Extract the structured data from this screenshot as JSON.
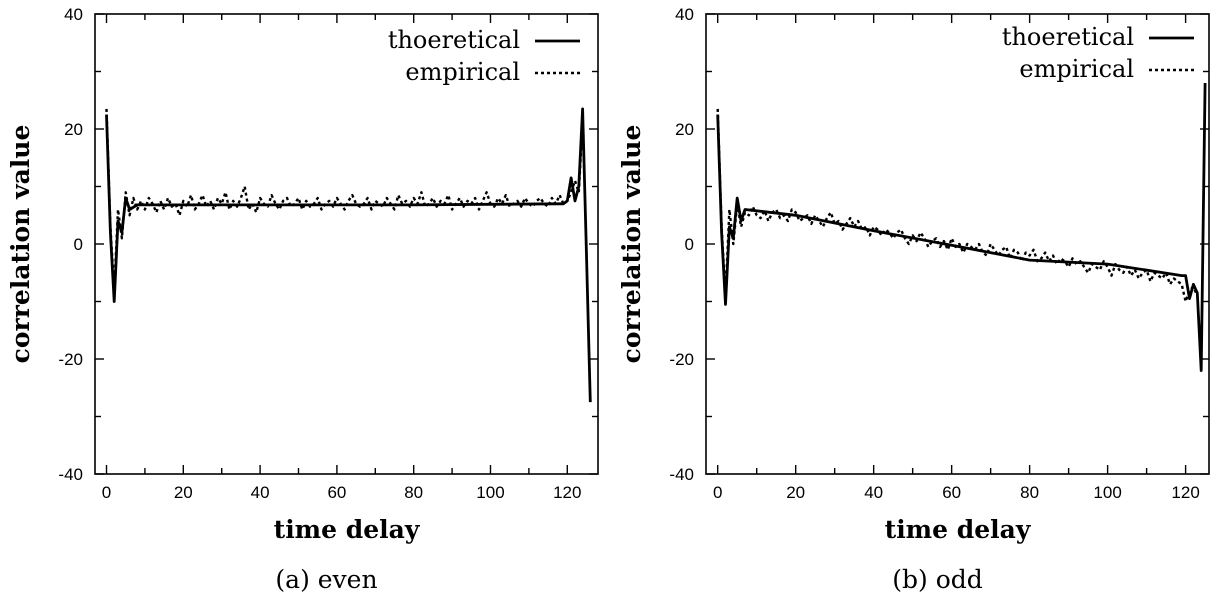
{
  "chart_data": [
    {
      "type": "line",
      "caption": "(a) even",
      "xlabel": "time delay",
      "ylabel": "correlation value",
      "xlim": [
        -3,
        128
      ],
      "ylim": [
        -40,
        40
      ],
      "x_ticks": [
        0,
        20,
        40,
        60,
        80,
        100,
        120
      ],
      "y_ticks": [
        -40,
        -20,
        0,
        20,
        40
      ],
      "grid": false,
      "legend_position": "top-right",
      "series": [
        {
          "name": "thoeretical",
          "style": "solid",
          "x": [
            0,
            1,
            2,
            3,
            4,
            5,
            6,
            8,
            20,
            40,
            60,
            80,
            100,
            118,
            119,
            120,
            121,
            122,
            123,
            124,
            125,
            126
          ],
          "y": [
            22.5,
            2,
            -10,
            4,
            2,
            8,
            6,
            6.8,
            6.8,
            6.8,
            6.8,
            6.8,
            6.9,
            7.0,
            7.0,
            7.5,
            11.5,
            7.5,
            10,
            23.5,
            -2,
            -27.5
          ]
        },
        {
          "name": "empirical",
          "style": "dotted",
          "x": [
            0,
            1,
            2,
            3,
            4,
            5,
            6,
            7,
            8,
            9,
            10,
            11,
            12,
            13,
            14,
            15,
            16,
            17,
            18,
            19,
            20,
            21,
            22,
            23,
            24,
            25,
            26,
            27,
            28,
            29,
            30,
            31,
            32,
            33,
            34,
            35,
            36,
            37,
            38,
            39,
            40,
            41,
            42,
            43,
            44,
            45,
            46,
            47,
            48,
            49,
            50,
            51,
            52,
            53,
            54,
            55,
            56,
            57,
            58,
            59,
            60,
            61,
            62,
            63,
            64,
            65,
            66,
            67,
            68,
            69,
            70,
            71,
            72,
            73,
            74,
            75,
            76,
            77,
            78,
            79,
            80,
            81,
            82,
            83,
            84,
            85,
            86,
            87,
            88,
            89,
            90,
            91,
            92,
            93,
            94,
            95,
            96,
            97,
            98,
            99,
            100,
            101,
            102,
            103,
            104,
            105,
            106,
            107,
            108,
            109,
            110,
            111,
            112,
            113,
            114,
            115,
            116,
            117,
            118,
            119,
            120,
            121,
            122,
            123,
            124
          ],
          "y": [
            23.5,
            3,
            -8,
            6,
            1,
            9,
            5,
            8,
            6,
            7.5,
            6,
            8,
            7,
            5.5,
            7.5,
            6,
            8,
            6.5,
            7,
            5,
            7.5,
            6.5,
            8.5,
            6,
            7,
            8.5,
            6.5,
            7.5,
            6,
            8,
            7,
            9,
            6,
            7.5,
            6.5,
            8,
            10,
            6,
            7,
            5.5,
            8,
            7,
            6.5,
            8.5,
            7,
            6,
            7.5,
            8,
            6.5,
            7,
            8,
            6,
            7.5,
            6.5,
            7,
            8,
            6,
            7,
            7.5,
            6.5,
            8,
            7,
            6,
            7.5,
            8.5,
            7,
            6.5,
            7,
            8,
            6,
            7.5,
            7,
            6.5,
            8,
            7,
            6,
            8.5,
            7,
            7.5,
            6.5,
            8,
            7,
            9,
            6.5,
            7,
            8,
            6.5,
            7.5,
            7,
            8.5,
            6,
            7,
            8,
            6.5,
            7.5,
            7,
            8,
            6,
            7.5,
            9,
            7,
            6.5,
            8,
            7,
            8.5,
            6.5,
            7,
            7.5,
            6.5,
            8,
            7,
            6.5,
            7.5,
            8,
            7,
            6.5,
            8,
            7,
            8.5,
            7,
            7.5,
            9,
            11,
            9,
            21
          ]
        }
      ]
    },
    {
      "type": "line",
      "caption": "(b) odd",
      "xlabel": "time delay",
      "ylabel": "correlation value",
      "xlim": [
        -3,
        126
      ],
      "ylim": [
        -40,
        40
      ],
      "x_ticks": [
        0,
        20,
        40,
        60,
        80,
        100,
        120
      ],
      "y_ticks": [
        -40,
        -20,
        0,
        20,
        40
      ],
      "grid": false,
      "legend_position": "top-right",
      "series": [
        {
          "name": "thoeretical",
          "style": "solid",
          "x": [
            0,
            1,
            2,
            3,
            4,
            5,
            6,
            7,
            20,
            40,
            60,
            80,
            100,
            119,
            120,
            121,
            122,
            123,
            124,
            125
          ],
          "y": [
            22.5,
            2,
            -10.5,
            3,
            1,
            8,
            4,
            6,
            5,
            2.3,
            -0.2,
            -2.8,
            -3.5,
            -5.5,
            -5.5,
            -9.5,
            -7,
            -8.5,
            -22,
            28
          ]
        },
        {
          "name": "empirical",
          "style": "dotted",
          "x": [
            0,
            1,
            2,
            3,
            4,
            5,
            6,
            7,
            8,
            9,
            10,
            11,
            12,
            13,
            14,
            15,
            16,
            17,
            18,
            19,
            20,
            21,
            22,
            23,
            24,
            25,
            26,
            27,
            28,
            29,
            30,
            31,
            32,
            33,
            34,
            35,
            36,
            37,
            38,
            39,
            40,
            41,
            42,
            43,
            44,
            45,
            46,
            47,
            48,
            49,
            50,
            51,
            52,
            53,
            54,
            55,
            56,
            57,
            58,
            59,
            60,
            61,
            62,
            63,
            64,
            65,
            66,
            67,
            68,
            69,
            70,
            71,
            72,
            73,
            74,
            75,
            76,
            77,
            78,
            79,
            80,
            81,
            82,
            83,
            84,
            85,
            86,
            87,
            88,
            89,
            90,
            91,
            92,
            93,
            94,
            95,
            96,
            97,
            98,
            99,
            100,
            101,
            102,
            103,
            104,
            105,
            106,
            107,
            108,
            109,
            110,
            111,
            112,
            113,
            114,
            115,
            116,
            117,
            118,
            119,
            120,
            121,
            122,
            123
          ],
          "y": [
            23.5,
            3,
            -9,
            6,
            0,
            7,
            3,
            5.5,
            5,
            6.5,
            5,
            4.5,
            5.8,
            4,
            5.5,
            6,
            4.5,
            5,
            4,
            6,
            5.5,
            4,
            4.5,
            5,
            3.5,
            5,
            4,
            3,
            4.5,
            5.5,
            3.5,
            4,
            2.5,
            3.5,
            4.5,
            3,
            4,
            2.5,
            3,
            1.5,
            3,
            2.5,
            1.5,
            2.5,
            2,
            1,
            2,
            2.5,
            1,
            0,
            1.5,
            0.5,
            2,
            1,
            -0.5,
            0.5,
            1,
            -0.5,
            0.5,
            -1,
            1,
            -0.5,
            0,
            -1.5,
            0,
            -0.5,
            -1,
            0,
            -1.5,
            -2,
            0,
            -1,
            -2,
            -1,
            -0.5,
            -2.5,
            -1,
            -1.5,
            -3,
            -1.5,
            -2,
            -1,
            -3,
            -2.5,
            -1.5,
            -3,
            -2,
            -3.5,
            -2.5,
            -3,
            -4,
            -2.5,
            -3.5,
            -3,
            -4,
            -5,
            -3.5,
            -4,
            -4.5,
            -3,
            -4,
            -5.5,
            -3.5,
            -4.5,
            -5,
            -4,
            -5.5,
            -4.5,
            -6,
            -5,
            -4.5,
            -6.5,
            -5,
            -5.5,
            -6,
            -5,
            -7,
            -6,
            -6.5,
            -7,
            -10,
            -8,
            -7.5,
            -9
          ]
        }
      ]
    }
  ]
}
